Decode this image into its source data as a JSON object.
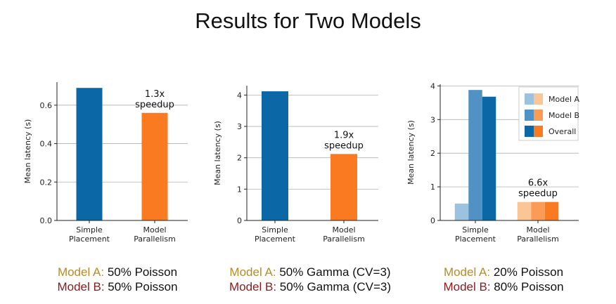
{
  "title": "Results for Two Models",
  "colors": {
    "blue": "#0b67a6",
    "orange": "#f97a20",
    "model_a_blue": "#9cc3dd",
    "model_a_orange": "#fcc596",
    "model_b_blue": "#4f92c3",
    "model_b_orange": "#fa9c55",
    "caption_model_a": "#b58b2a",
    "caption_model_b": "#8b1a1a"
  },
  "chart_data": [
    {
      "type": "bar",
      "categories": [
        "Simple\nPlacement",
        "Model\nParallelism"
      ],
      "values": [
        0.69,
        0.56
      ],
      "ylabel": "Mean latency (s)",
      "ylim": [
        0,
        0.72
      ],
      "yticks": [
        "0.0",
        "0.2",
        "0.4",
        "0.6"
      ],
      "annotation": [
        "1.3x",
        "speedup"
      ],
      "grid": true
    },
    {
      "type": "bar",
      "categories": [
        "Simple\nPlacement",
        "Model\nParallelism"
      ],
      "values": [
        4.12,
        2.12
      ],
      "ylabel": "Mean latency (s)",
      "ylim": [
        0,
        4.3
      ],
      "yticks": [
        "0",
        "1",
        "2",
        "3",
        "4"
      ],
      "annotation": [
        "1.9x",
        "speedup"
      ],
      "grid": true
    },
    {
      "type": "bar",
      "categories": [
        "Simple\nPlacement",
        "Model\nParallelism"
      ],
      "series": [
        {
          "name": "Model A",
          "values": [
            0.5,
            0.55
          ]
        },
        {
          "name": "Model B",
          "values": [
            3.88,
            0.55
          ]
        },
        {
          "name": "Overall",
          "values": [
            3.68,
            0.55
          ]
        }
      ],
      "ylabel": "Mean latency (s)",
      "ylim": [
        0,
        4.05
      ],
      "yticks": [
        "0",
        "1",
        "2",
        "3",
        "4"
      ],
      "annotation": [
        "6.6x",
        "speedup"
      ],
      "legend": "top-right",
      "grid": true
    }
  ],
  "captions": [
    {
      "a_label": "Model A:",
      "a_text": "50% Poisson",
      "b_label": "Model B:",
      "b_text": "50% Poisson"
    },
    {
      "a_label": "Model A:",
      "a_text": "50% Gamma (CV=3)",
      "b_label": "Model B:",
      "b_text": "50% Gamma (CV=3)"
    },
    {
      "a_label": "Model A:",
      "a_text": "20% Poisson",
      "b_label": "Model B:",
      "b_text": "80% Poisson"
    }
  ]
}
